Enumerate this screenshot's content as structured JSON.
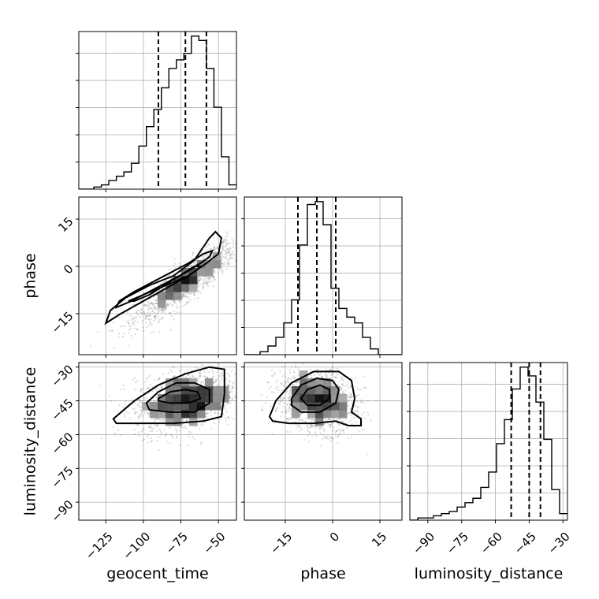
{
  "chart_data": {
    "type": "corner",
    "parameters": [
      "geocent_time",
      "phase",
      "luminosity_distance"
    ],
    "axes": {
      "geocent_time": {
        "range": [
          -143,
          -38
        ],
        "ticks": [
          -125,
          -100,
          -75,
          -50
        ],
        "tick_labels": [
          "−125",
          "−100",
          "−75",
          "−50"
        ]
      },
      "phase": {
        "range": [
          -28,
          22
        ],
        "ticks": [
          -15,
          0,
          15
        ],
        "tick_labels": [
          "−15",
          "0",
          "15"
        ]
      },
      "luminosity_distance": {
        "range": [
          -98,
          -28
        ],
        "ticks": [
          -90,
          -75,
          -60,
          -45,
          -30
        ],
        "tick_labels": [
          "−90",
          "−75",
          "−60",
          "−45",
          "−30"
        ]
      }
    },
    "marginals": [
      {
        "parameter": "geocent_time",
        "bin_edges": [
          -143,
          -138,
          -133,
          -128,
          -123,
          -118,
          -113,
          -108,
          -103,
          -98,
          -93,
          -88,
          -83,
          -78,
          -73,
          -68,
          -63,
          -58,
          -53,
          -48,
          -43,
          -38
        ],
        "counts": [
          0,
          0,
          1,
          2,
          4,
          6,
          8,
          12,
          20,
          29,
          37,
          47,
          56,
          60,
          63,
          71,
          69,
          56,
          38,
          15,
          2
        ],
        "quantiles": [
          -90,
          -72,
          -58
        ]
      },
      {
        "parameter": "phase",
        "bin_edges": [
          -28,
          -25.5,
          -23,
          -20.5,
          -18,
          -15.5,
          -13,
          -10.5,
          -8,
          -5.5,
          -3,
          -0.5,
          2,
          4.5,
          7,
          9.5,
          12,
          14.5,
          17,
          19.5,
          22
        ],
        "counts": [
          0,
          0,
          1,
          3,
          6,
          11,
          19,
          38,
          52,
          53,
          45,
          23,
          16,
          13,
          11,
          6,
          2,
          0,
          0,
          0
        ],
        "quantiles": [
          -11,
          -5,
          1
        ]
      },
      {
        "parameter": "luminosity_distance",
        "bin_edges": [
          -98,
          -94.5,
          -91,
          -87.5,
          -84,
          -80.5,
          -77,
          -73.5,
          -70,
          -66.5,
          -63,
          -59.5,
          -56,
          -52.5,
          -49,
          -45.5,
          -42,
          -38.5,
          -35,
          -31.5,
          -28
        ],
        "counts": [
          0,
          1,
          1,
          2,
          3,
          4,
          6,
          8,
          10,
          15,
          22,
          35,
          46,
          60,
          70,
          66,
          54,
          37,
          14,
          3
        ],
        "quantiles": [
          -53,
          -45,
          -40
        ]
      }
    ],
    "pairs": [
      {
        "x": "geocent_time",
        "y": "phase",
        "correlation": 0.88,
        "contours": [
          [
            [
              -110,
              -11
            ],
            [
              -100,
              -9
            ],
            [
              -90,
              -7
            ],
            [
              -80,
              -5
            ],
            [
              -70,
              -3
            ],
            [
              -64,
              -1
            ],
            [
              -62,
              0
            ],
            [
              -66,
              0
            ],
            [
              -76,
              -3
            ],
            [
              -86,
              -6
            ],
            [
              -96,
              -9
            ],
            [
              -106,
              -11
            ]
          ],
          [
            [
              -118,
              -13
            ],
            [
              -108,
              -11
            ],
            [
              -96,
              -8
            ],
            [
              -84,
              -5
            ],
            [
              -72,
              -2
            ],
            [
              -62,
              1
            ],
            [
              -56,
              3
            ],
            [
              -54,
              5
            ],
            [
              -60,
              4
            ],
            [
              -70,
              1
            ],
            [
              -82,
              -2
            ],
            [
              -94,
              -5
            ],
            [
              -106,
              -8
            ],
            [
              -116,
              -11
            ]
          ],
          [
            [
              -125,
              -18
            ],
            [
              -115,
              -15
            ],
            [
              -100,
              -11
            ],
            [
              -85,
              -7
            ],
            [
              -70,
              -3
            ],
            [
              -58,
              1
            ],
            [
              -50,
              4
            ],
            [
              -48,
              9
            ],
            [
              -52,
              11
            ],
            [
              -56,
              9
            ],
            [
              -66,
              2
            ],
            [
              -80,
              -3
            ],
            [
              -96,
              -6
            ],
            [
              -112,
              -10
            ],
            [
              -122,
              -14
            ]
          ]
        ]
      },
      {
        "x": "geocent_time",
        "y": "luminosity_distance",
        "correlation": 0.3,
        "contours": [
          [
            [
              -90,
              -44
            ],
            [
              -82,
              -41
            ],
            [
              -72,
              -40
            ],
            [
              -64,
              -41
            ],
            [
              -62,
              -44
            ],
            [
              -70,
              -46
            ],
            [
              -82,
              -46
            ],
            [
              -90,
              -45
            ]
          ],
          [
            [
              -98,
              -46
            ],
            [
              -90,
              -41
            ],
            [
              -78,
              -37
            ],
            [
              -66,
              -37
            ],
            [
              -56,
              -40
            ],
            [
              -56,
              -46
            ],
            [
              -66,
              -50
            ],
            [
              -82,
              -50
            ],
            [
              -96,
              -49
            ]
          ],
          [
            [
              -120,
              -53
            ],
            [
              -106,
              -45
            ],
            [
              -90,
              -38
            ],
            [
              -72,
              -33
            ],
            [
              -56,
              -30
            ],
            [
              -46,
              -31
            ],
            [
              -46,
              -42
            ],
            [
              -48,
              -52
            ],
            [
              -60,
              -54
            ],
            [
              -80,
              -55
            ],
            [
              -100,
              -55
            ],
            [
              -118,
              -55
            ]
          ]
        ]
      },
      {
        "x": "phase",
        "y": "luminosity_distance",
        "correlation": -0.2,
        "contours": [
          [
            [
              -10,
              -44
            ],
            [
              -8,
              -40
            ],
            [
              -4,
              -38
            ],
            [
              -1,
              -40
            ],
            [
              -1,
              -44
            ],
            [
              -4,
              -47
            ],
            [
              -8,
              -47
            ]
          ],
          [
            [
              -13,
              -44
            ],
            [
              -10,
              -38
            ],
            [
              -5,
              -35
            ],
            [
              0,
              -36
            ],
            [
              2,
              -40
            ],
            [
              1,
              -46
            ],
            [
              -4,
              -50
            ],
            [
              -10,
              -50
            ],
            [
              -13,
              -47
            ]
          ],
          [
            [
              -20,
              -52
            ],
            [
              -18,
              -45
            ],
            [
              -13,
              -37
            ],
            [
              -6,
              -32
            ],
            [
              2,
              -32
            ],
            [
              6,
              -36
            ],
            [
              7,
              -44
            ],
            [
              6,
              -50
            ],
            [
              9,
              -53
            ],
            [
              9,
              -56
            ],
            [
              5,
              -56
            ],
            [
              1,
              -54
            ],
            [
              -6,
              -55
            ],
            [
              -14,
              -55
            ],
            [
              -19,
              -54
            ]
          ]
        ]
      }
    ]
  }
}
